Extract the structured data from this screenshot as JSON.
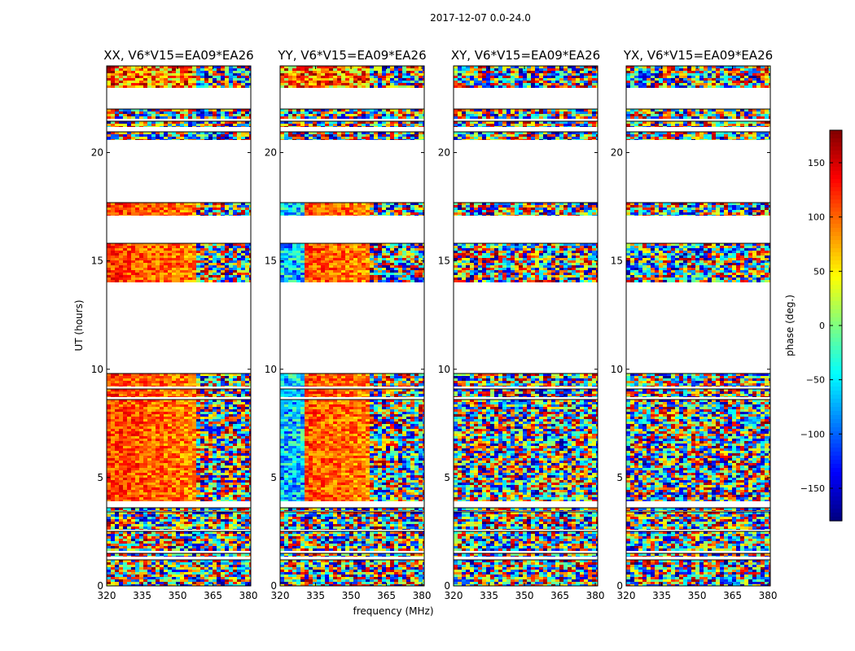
{
  "figure": {
    "suptitle": "2017-12-07 0.0-24.0"
  },
  "chart_data": {
    "type": "heatmap",
    "suptitle": "2017-12-07 0.0-24.0",
    "xlabel": "frequency (MHz)",
    "ylabel": "UT (hours)",
    "xlim": [
      320,
      381
    ],
    "ylim": [
      0,
      24
    ],
    "xticks": [
      320,
      335,
      350,
      365,
      380
    ],
    "yticks": [
      0,
      5,
      10,
      15,
      20
    ],
    "colorbar": {
      "label": "phase (deg.)",
      "range": [
        -180,
        180
      ],
      "ticks": [
        150,
        100,
        50,
        0,
        -50,
        -100,
        -150
      ],
      "tick_labels": [
        "150",
        "100",
        "50",
        "0",
        "−50",
        "−100",
        "−150"
      ],
      "colormap": "jet"
    },
    "data_time_ranges_hours": [
      [
        0.0,
        1.2
      ],
      [
        1.35,
        1.5
      ],
      [
        1.6,
        2.5
      ],
      [
        2.6,
        3.4
      ],
      [
        3.45,
        3.6
      ],
      [
        3.9,
        8.6
      ],
      [
        8.7,
        9.1
      ],
      [
        9.2,
        9.8
      ],
      [
        14.0,
        15.8
      ],
      [
        17.1,
        17.7
      ],
      [
        20.6,
        20.95
      ],
      [
        21.2,
        21.45
      ],
      [
        21.55,
        22.0
      ],
      [
        23.0,
        24.0
      ]
    ],
    "panels": [
      {
        "title": "XX, V6*V15=EA09*EA26",
        "pattern": "coherent"
      },
      {
        "title": "YY, V6*V15=EA09*EA26",
        "pattern": "coherent"
      },
      {
        "title": "XY, V6*V15=EA09*EA26",
        "pattern": "noise"
      },
      {
        "title": "YX, V6*V15=EA09*EA26",
        "pattern": "noise"
      }
    ]
  }
}
